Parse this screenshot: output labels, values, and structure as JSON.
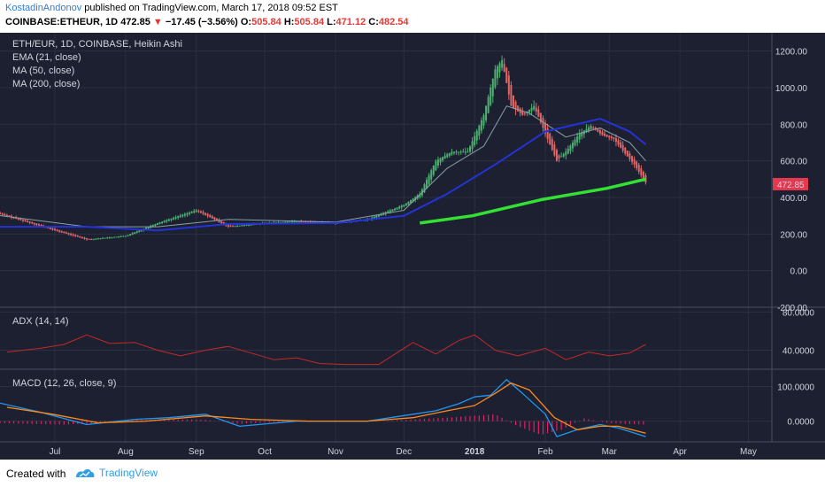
{
  "header": {
    "author": "KostadinAndonov",
    "published_text": "published on TradingView.com, March 17, 2018 09:52 EST",
    "symbol": "COINBASE:ETHEUR, 1D",
    "price": "472.85",
    "change_arrow": "▼",
    "change": "−17.45 (−3.56%)",
    "open_label": "O:",
    "open": "505.84",
    "high_label": "H:",
    "high": "505.84",
    "low_label": "L:",
    "low": "471.12",
    "close_label": "C:",
    "close": "482.54"
  },
  "footer": {
    "created_with": "Created with",
    "brand": "TradingView"
  },
  "colors": {
    "background": "#1c2030",
    "up_candle": "#4caf70",
    "down_candle": "#e06666",
    "ema21": "#8aa0a8",
    "ma50": "#2433d8",
    "ma200": "#35e035",
    "adx": "#c62828",
    "macd": "#2196f3",
    "signal": "#ff8a1c",
    "histogram": "#e91e63",
    "price_label": "#e53950"
  },
  "chart_data": [
    {
      "type": "candlestick",
      "pane": "price",
      "title": "ETH/EUR, 1D, COINBASE, Heikin Ashi",
      "indicators": [
        "EMA (21, close)",
        "MA (50, close)",
        "MA (200, close)"
      ],
      "y_ticks": [
        "1200.00",
        "1000.00",
        "800.00",
        "600.00",
        "400.00",
        "200.00",
        "0.00",
        "-200.00"
      ],
      "ylim": [
        -200,
        1300
      ],
      "last_price_label": "472.85",
      "x_ticks": [
        "Jul",
        "Aug",
        "Sep",
        "Oct",
        "Nov",
        "Dec",
        "2018",
        "Feb",
        "Mar",
        "Apr",
        "May"
      ],
      "x_tick_dates": [
        "2017-07-01",
        "2017-08-01",
        "2017-09-01",
        "2017-10-01",
        "2017-11-01",
        "2017-12-01",
        "2018-01-01",
        "2018-02-01",
        "2018-03-01",
        "2018-04-01",
        "2018-05-01"
      ],
      "close_series": {
        "dates": [
          "2017-06-01",
          "2017-06-15",
          "2017-07-01",
          "2017-07-15",
          "2017-08-01",
          "2017-08-15",
          "2017-09-01",
          "2017-09-15",
          "2017-10-01",
          "2017-10-15",
          "2017-11-01",
          "2017-11-15",
          "2017-12-01",
          "2017-12-08",
          "2017-12-15",
          "2017-12-22",
          "2017-12-29",
          "2018-01-05",
          "2018-01-10",
          "2018-01-13",
          "2018-01-17",
          "2018-01-22",
          "2018-01-27",
          "2018-02-01",
          "2018-02-06",
          "2018-02-10",
          "2018-02-16",
          "2018-02-21",
          "2018-02-26",
          "2018-03-03",
          "2018-03-08",
          "2018-03-12",
          "2018-03-17"
        ],
        "values": [
          330,
          280,
          220,
          170,
          190,
          260,
          330,
          240,
          260,
          270,
          260,
          280,
          360,
          420,
          600,
          650,
          650,
          850,
          1100,
          1150,
          900,
          850,
          900,
          750,
          600,
          650,
          750,
          790,
          740,
          720,
          640,
          580,
          482
        ]
      },
      "ema21": {
        "dates": [
          "2017-06-01",
          "2017-07-15",
          "2017-08-15",
          "2017-09-15",
          "2017-11-01",
          "2017-12-01",
          "2017-12-20",
          "2018-01-05",
          "2018-01-15",
          "2018-01-25",
          "2018-02-10",
          "2018-02-25",
          "2018-03-10",
          "2018-03-17"
        ],
        "values": [
          310,
          240,
          240,
          280,
          265,
          330,
          560,
          680,
          900,
          860,
          730,
          780,
          700,
          600
        ]
      },
      "ma50": {
        "dates": [
          "2017-06-01",
          "2017-07-15",
          "2017-08-15",
          "2017-09-15",
          "2017-11-01",
          "2017-12-01",
          "2017-12-20",
          "2018-01-10",
          "2018-02-01",
          "2018-02-25",
          "2018-03-10",
          "2018-03-17"
        ],
        "values": [
          240,
          240,
          220,
          255,
          260,
          300,
          420,
          580,
          760,
          830,
          760,
          690
        ]
      },
      "ma200": {
        "dates": [
          "2017-12-08",
          "2017-12-31",
          "2018-01-31",
          "2018-02-28",
          "2018-03-17"
        ],
        "values": [
          260,
          300,
          390,
          450,
          500
        ]
      }
    },
    {
      "type": "line",
      "pane": "adx",
      "title": "ADX (14, 14)",
      "y_ticks": [
        "80.0000",
        "40.0000"
      ],
      "ylim": [
        20,
        85
      ],
      "series": [
        {
          "dates": [
            "2017-06-10",
            "2017-06-25",
            "2017-07-05",
            "2017-07-15",
            "2017-07-25",
            "2017-08-05",
            "2017-08-15",
            "2017-08-25",
            "2017-09-05",
            "2017-09-15",
            "2017-09-25",
            "2017-10-05",
            "2017-10-15",
            "2017-10-25",
            "2017-11-05",
            "2017-11-15",
            "2017-11-20",
            "2017-12-05",
            "2017-12-15",
            "2017-12-25",
            "2018-01-01",
            "2018-01-10",
            "2018-01-20",
            "2018-02-01",
            "2018-02-10",
            "2018-02-20",
            "2018-03-01",
            "2018-03-10",
            "2018-03-17"
          ],
          "values": [
            38,
            42,
            46,
            56,
            47,
            48,
            40,
            34,
            40,
            44,
            37,
            30,
            32,
            26,
            25,
            25,
            25,
            48,
            36,
            50,
            56,
            40,
            34,
            42,
            30,
            38,
            34,
            37,
            46
          ]
        }
      ]
    },
    {
      "type": "line",
      "pane": "macd",
      "title": "MACD (12, 26, close, 9)",
      "y_ticks": [
        "100.0000",
        "0.0000"
      ],
      "ylim": [
        -60,
        150
      ],
      "series": [
        {
          "dates": [
            "2017-06-05",
            "2017-06-25",
            "2017-07-15",
            "2017-08-05",
            "2017-08-20",
            "2017-09-05",
            "2017-09-20",
            "2017-10-15",
            "2017-11-15",
            "2017-12-05",
            "2017-12-15",
            "2017-12-25",
            "2018-01-01",
            "2018-01-08",
            "2018-01-15",
            "2018-01-22",
            "2018-02-01",
            "2018-02-06",
            "2018-02-15",
            "2018-02-25",
            "2018-03-05",
            "2018-03-17"
          ],
          "values": [
            55,
            25,
            -10,
            5,
            10,
            20,
            -15,
            0,
            0,
            20,
            30,
            50,
            70,
            75,
            120,
            80,
            20,
            -45,
            -25,
            -10,
            -20,
            -45
          ]
        },
        {
          "dates": [
            "2017-06-10",
            "2017-06-30",
            "2017-07-20",
            "2017-08-10",
            "2017-09-05",
            "2017-09-25",
            "2017-10-20",
            "2017-11-15",
            "2017-12-05",
            "2017-12-20",
            "2018-01-01",
            "2018-01-10",
            "2018-01-17",
            "2018-01-25",
            "2018-02-05",
            "2018-02-15",
            "2018-02-25",
            "2018-03-05",
            "2018-03-17"
          ],
          "values": [
            40,
            20,
            -5,
            0,
            15,
            5,
            0,
            0,
            10,
            30,
            45,
            80,
            110,
            90,
            10,
            -25,
            -15,
            -15,
            -35
          ]
        }
      ],
      "histogram": {
        "dates": [
          "2017-06-05",
          "2017-06-20",
          "2017-07-05",
          "2017-07-20",
          "2017-08-05",
          "2017-08-20",
          "2017-09-05",
          "2017-09-20",
          "2017-10-05",
          "2017-10-20",
          "2017-11-05",
          "2017-11-20",
          "2017-12-05",
          "2017-12-20",
          "2017-12-31",
          "2018-01-10",
          "2018-01-20",
          "2018-01-30",
          "2018-02-08",
          "2018-02-18",
          "2018-02-28",
          "2018-03-08",
          "2018-03-17"
        ],
        "values": [
          -5,
          -8,
          -10,
          -6,
          3,
          5,
          4,
          -8,
          -3,
          2,
          1,
          0,
          5,
          10,
          15,
          20,
          -15,
          -40,
          -25,
          8,
          -5,
          -8,
          -10
        ]
      }
    }
  ]
}
